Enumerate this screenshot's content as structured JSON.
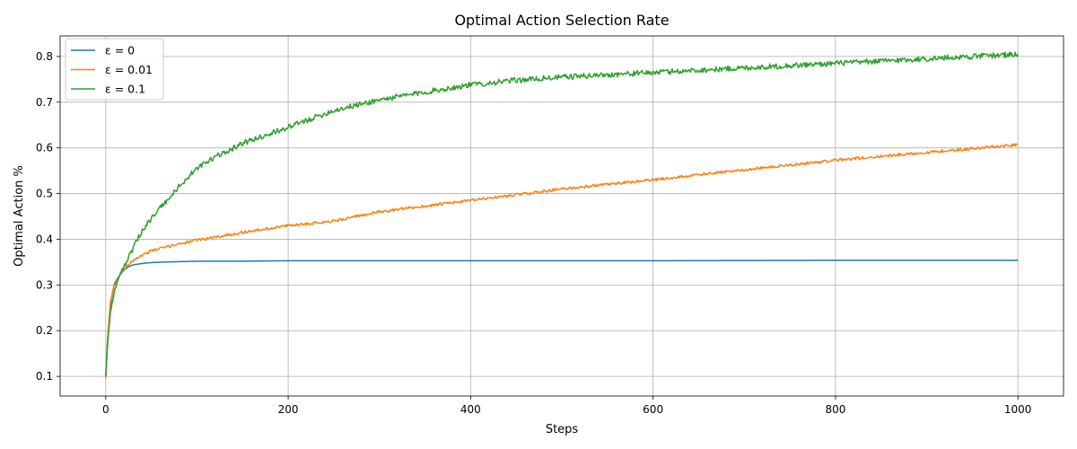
{
  "chart_data": {
    "type": "line",
    "title": "Optimal Action Selection Rate",
    "xlabel": "Steps",
    "ylabel": "Optimal Action %",
    "xlim": [
      -50,
      1050
    ],
    "ylim": [
      0.057,
      0.845
    ],
    "xticks": [
      0,
      200,
      400,
      600,
      800,
      1000
    ],
    "yticks": [
      0.1,
      0.2,
      0.3,
      0.4,
      0.5,
      0.6,
      0.7,
      0.8
    ],
    "xtick_labels": [
      "0",
      "200",
      "400",
      "600",
      "800",
      "1000"
    ],
    "ytick_labels": [
      "0.1",
      "0.2",
      "0.3",
      "0.4",
      "0.5",
      "0.6",
      "0.7",
      "0.8"
    ],
    "grid": true,
    "legend_position": "top-left",
    "series": [
      {
        "name": "ε = 0",
        "color": "#1f77b4",
        "noise": 0,
        "x": [
          0,
          2,
          5,
          8,
          10,
          15,
          20,
          25,
          30,
          40,
          50,
          60,
          80,
          100,
          150,
          200,
          300,
          400,
          600,
          800,
          1000
        ],
        "y": [
          0.1,
          0.18,
          0.25,
          0.29,
          0.305,
          0.32,
          0.333,
          0.34,
          0.344,
          0.347,
          0.349,
          0.35,
          0.351,
          0.352,
          0.352,
          0.353,
          0.353,
          0.353,
          0.353,
          0.354,
          0.354
        ]
      },
      {
        "name": "ε = 0.01",
        "color": "#ff7f0e",
        "noise": 0.003,
        "x": [
          0,
          2,
          5,
          8,
          10,
          15,
          20,
          25,
          30,
          40,
          50,
          60,
          80,
          100,
          150,
          200,
          250,
          300,
          400,
          500,
          600,
          700,
          800,
          900,
          1000
        ],
        "y": [
          0.095,
          0.18,
          0.26,
          0.29,
          0.3,
          0.32,
          0.335,
          0.345,
          0.355,
          0.365,
          0.375,
          0.38,
          0.39,
          0.398,
          0.415,
          0.43,
          0.44,
          0.46,
          0.485,
          0.51,
          0.53,
          0.552,
          0.573,
          0.59,
          0.607
        ]
      },
      {
        "name": "ε = 0.1",
        "color": "#2ca02c",
        "noise": 0.006,
        "x": [
          0,
          2,
          5,
          8,
          10,
          15,
          20,
          25,
          30,
          40,
          50,
          60,
          70,
          80,
          100,
          120,
          150,
          200,
          250,
          300,
          350,
          400,
          450,
          500,
          600,
          700,
          800,
          900,
          1000
        ],
        "y": [
          0.1,
          0.17,
          0.24,
          0.27,
          0.29,
          0.32,
          0.34,
          0.36,
          0.38,
          0.42,
          0.445,
          0.47,
          0.49,
          0.515,
          0.555,
          0.58,
          0.61,
          0.645,
          0.682,
          0.705,
          0.722,
          0.738,
          0.748,
          0.755,
          0.765,
          0.775,
          0.785,
          0.795,
          0.805
        ]
      }
    ]
  }
}
